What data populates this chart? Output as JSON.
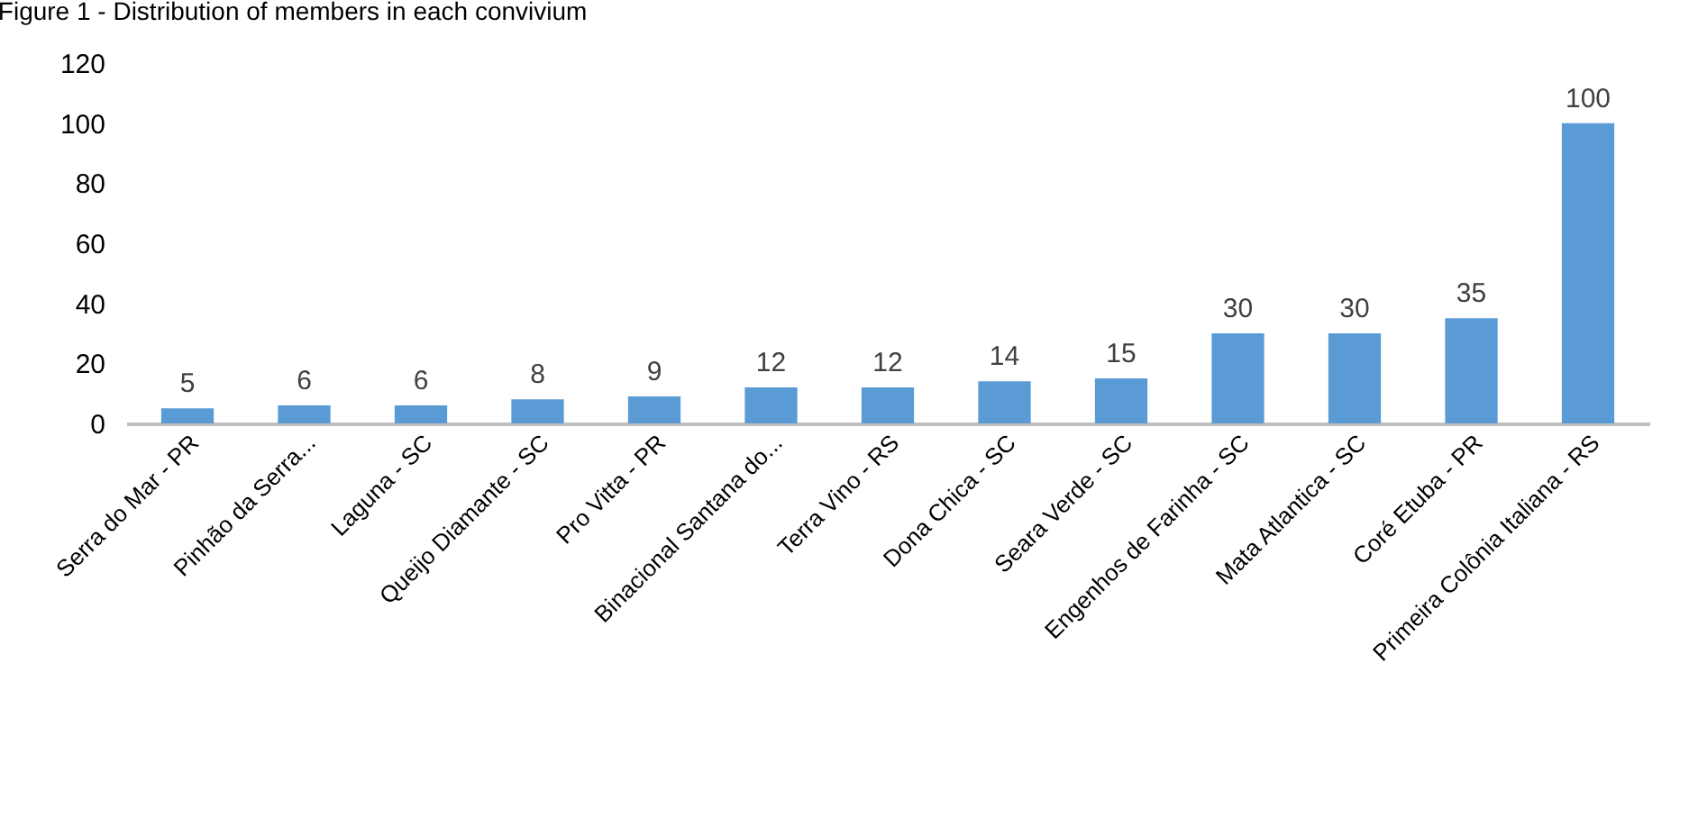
{
  "chart_data": {
    "type": "bar",
    "title": "Figure 1 - Distribution of members in each convivium",
    "categories": [
      "Serra do Mar - PR",
      "Pinhão da Serra...",
      "Laguna - SC",
      "Queijo Diamante - SC",
      "Pro Vitta - PR",
      "Binacional Santana do...",
      "Terra Vino - RS",
      "Dona Chica - SC",
      "Seara Verde - SC",
      "Engenhos de Farinha - SC",
      "Mata Atlantica - SC",
      "Coré Etuba - PR",
      "Primeira Colônia Italiana - RS"
    ],
    "values": [
      5,
      6,
      6,
      8,
      9,
      12,
      12,
      14,
      15,
      30,
      30,
      35,
      100
    ],
    "color": "#5b9bd5",
    "ylim": [
      0,
      120
    ],
    "yticks": [
      0,
      20,
      40,
      60,
      80,
      100,
      120
    ],
    "grid": false,
    "data_labels": true
  }
}
